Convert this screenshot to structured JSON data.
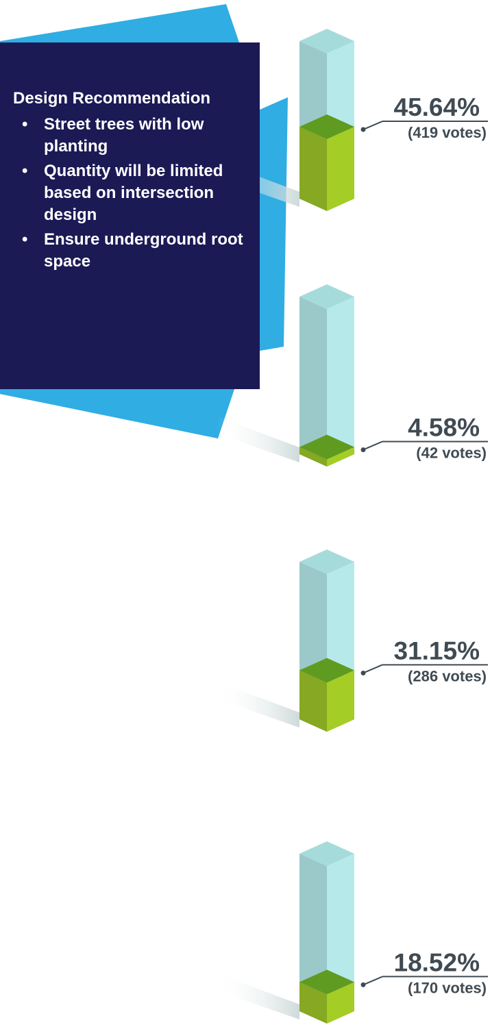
{
  "recommendation": {
    "title": "Design Recommendation",
    "bullets": [
      "Street trees with low planting",
      "Quantity will be limited based on intersection design",
      "Ensure underground root space"
    ]
  },
  "colors": {
    "card_bg": "#1b1a55",
    "accent_blue": "#30ade3",
    "column_glass_left": "#9bc8c8",
    "column_glass_right": "#b6eaea",
    "column_glass_top": "#a6dbdb",
    "fill_left": "#86a823",
    "fill_right": "#a4cd26",
    "fill_top": "#5f9b20",
    "label_text": "#404a52"
  },
  "chart_data": {
    "type": "bar",
    "orientation": "vertical-3d-columns",
    "ylim": [
      0,
      100
    ],
    "unit": "percent",
    "bars": [
      {
        "percent": 45.64,
        "votes": 419,
        "pct_label": "45.64%",
        "votes_label": "(419 votes)"
      },
      {
        "percent": 4.58,
        "votes": 42,
        "pct_label": "4.58%",
        "votes_label": "(42 votes)"
      },
      {
        "percent": 31.15,
        "votes": 286,
        "pct_label": "31.15%",
        "votes_label": "(286 votes)"
      },
      {
        "percent": 18.52,
        "votes": 170,
        "pct_label": "18.52%",
        "votes_label": "(170 votes)"
      }
    ]
  }
}
